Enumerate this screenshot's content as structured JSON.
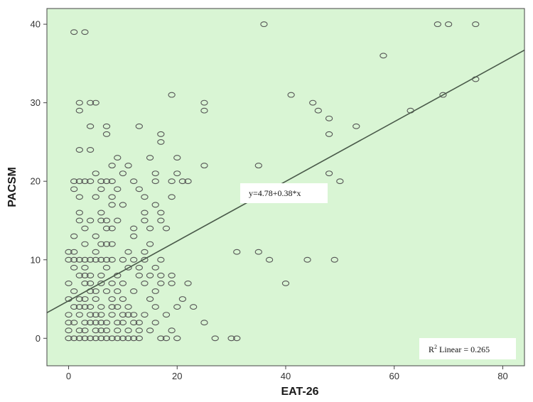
{
  "chart_data": {
    "type": "scatter",
    "xlabel": "EAT-26",
    "ylabel": "PACSM",
    "xlim": [
      -4,
      84
    ],
    "ylim": [
      -3.5,
      42
    ],
    "xticks": [
      "0",
      "20",
      "40",
      "60",
      "80"
    ],
    "yticks": [
      "0",
      "10",
      "20",
      "30",
      "40"
    ],
    "grid": false,
    "background_color": "#d9f5d4",
    "point_color": "#555555",
    "line_color": "#4a5a4a",
    "fit_line": {
      "intercept": 4.78,
      "slope": 0.38
    },
    "equation_label": "y=4.78+0.38*x",
    "r2_label": {
      "prefix": "R",
      "superscript": "2",
      "text": " Linear = 0.265"
    },
    "points": [
      [
        1,
        39
      ],
      [
        3,
        39
      ],
      [
        36,
        40
      ],
      [
        68,
        40
      ],
      [
        70,
        40
      ],
      [
        75,
        40
      ],
      [
        58,
        36
      ],
      [
        75,
        33
      ],
      [
        19,
        31
      ],
      [
        41,
        31
      ],
      [
        69,
        31
      ],
      [
        2,
        30
      ],
      [
        4,
        30
      ],
      [
        5,
        30
      ],
      [
        25,
        30
      ],
      [
        45,
        30
      ],
      [
        2,
        29
      ],
      [
        25,
        29
      ],
      [
        46,
        29
      ],
      [
        63,
        29
      ],
      [
        48,
        28
      ],
      [
        4,
        27
      ],
      [
        7,
        27
      ],
      [
        13,
        27
      ],
      [
        53,
        27
      ],
      [
        7,
        26
      ],
      [
        17,
        26
      ],
      [
        48,
        26
      ],
      [
        17,
        25
      ],
      [
        2,
        24
      ],
      [
        4,
        24
      ],
      [
        9,
        23
      ],
      [
        15,
        23
      ],
      [
        20,
        23
      ],
      [
        8,
        22
      ],
      [
        11,
        22
      ],
      [
        25,
        22
      ],
      [
        35,
        22
      ],
      [
        5,
        21
      ],
      [
        10,
        21
      ],
      [
        16,
        21
      ],
      [
        20,
        21
      ],
      [
        48,
        21
      ],
      [
        1,
        20
      ],
      [
        2,
        20
      ],
      [
        3,
        20
      ],
      [
        4,
        20
      ],
      [
        6,
        20
      ],
      [
        7,
        20
      ],
      [
        8,
        20
      ],
      [
        12,
        20
      ],
      [
        16,
        20
      ],
      [
        19,
        20
      ],
      [
        21,
        20
      ],
      [
        22,
        20
      ],
      [
        50,
        20
      ],
      [
        1,
        19
      ],
      [
        6,
        19
      ],
      [
        9,
        19
      ],
      [
        13,
        19
      ],
      [
        2,
        18
      ],
      [
        5,
        18
      ],
      [
        8,
        18
      ],
      [
        14,
        18
      ],
      [
        19,
        18
      ],
      [
        8,
        17
      ],
      [
        10,
        17
      ],
      [
        16,
        17
      ],
      [
        2,
        16
      ],
      [
        6,
        16
      ],
      [
        14,
        16
      ],
      [
        17,
        16
      ],
      [
        2,
        15
      ],
      [
        4,
        15
      ],
      [
        6,
        15
      ],
      [
        7,
        15
      ],
      [
        9,
        15
      ],
      [
        14,
        15
      ],
      [
        17,
        15
      ],
      [
        3,
        14
      ],
      [
        7,
        14
      ],
      [
        8,
        14
      ],
      [
        12,
        14
      ],
      [
        15,
        14
      ],
      [
        18,
        14
      ],
      [
        1,
        13
      ],
      [
        5,
        13
      ],
      [
        12,
        13
      ],
      [
        3,
        12
      ],
      [
        6,
        12
      ],
      [
        7,
        12
      ],
      [
        8,
        12
      ],
      [
        15,
        12
      ],
      [
        0,
        11
      ],
      [
        1,
        11
      ],
      [
        5,
        11
      ],
      [
        11,
        11
      ],
      [
        14,
        11
      ],
      [
        31,
        11
      ],
      [
        35,
        11
      ],
      [
        0,
        10
      ],
      [
        1,
        10
      ],
      [
        2,
        10
      ],
      [
        3,
        10
      ],
      [
        4,
        10
      ],
      [
        5,
        10
      ],
      [
        6,
        10
      ],
      [
        7,
        10
      ],
      [
        8,
        10
      ],
      [
        10,
        10
      ],
      [
        12,
        10
      ],
      [
        14,
        10
      ],
      [
        17,
        10
      ],
      [
        37,
        10
      ],
      [
        44,
        10
      ],
      [
        49,
        10
      ],
      [
        1,
        9
      ],
      [
        3,
        9
      ],
      [
        7,
        9
      ],
      [
        11,
        9
      ],
      [
        13,
        9
      ],
      [
        16,
        9
      ],
      [
        2,
        8
      ],
      [
        3,
        8
      ],
      [
        4,
        8
      ],
      [
        6,
        8
      ],
      [
        9,
        8
      ],
      [
        13,
        8
      ],
      [
        15,
        8
      ],
      [
        17,
        8
      ],
      [
        19,
        8
      ],
      [
        0,
        7
      ],
      [
        3,
        7
      ],
      [
        4,
        7
      ],
      [
        6,
        7
      ],
      [
        8,
        7
      ],
      [
        10,
        7
      ],
      [
        14,
        7
      ],
      [
        17,
        7
      ],
      [
        19,
        7
      ],
      [
        22,
        7
      ],
      [
        40,
        7
      ],
      [
        1,
        6
      ],
      [
        4,
        6
      ],
      [
        5,
        6
      ],
      [
        7,
        6
      ],
      [
        9,
        6
      ],
      [
        12,
        6
      ],
      [
        16,
        6
      ],
      [
        0,
        5
      ],
      [
        2,
        5
      ],
      [
        3,
        5
      ],
      [
        5,
        5
      ],
      [
        8,
        5
      ],
      [
        10,
        5
      ],
      [
        15,
        5
      ],
      [
        21,
        5
      ],
      [
        1,
        4
      ],
      [
        2,
        4
      ],
      [
        3,
        4
      ],
      [
        4,
        4
      ],
      [
        6,
        4
      ],
      [
        8,
        4
      ],
      [
        9,
        4
      ],
      [
        11,
        4
      ],
      [
        16,
        4
      ],
      [
        20,
        4
      ],
      [
        23,
        4
      ],
      [
        0,
        3
      ],
      [
        2,
        3
      ],
      [
        4,
        3
      ],
      [
        5,
        3
      ],
      [
        6,
        3
      ],
      [
        8,
        3
      ],
      [
        10,
        3
      ],
      [
        11,
        3
      ],
      [
        12,
        3
      ],
      [
        14,
        3
      ],
      [
        18,
        3
      ],
      [
        0,
        2
      ],
      [
        1,
        2
      ],
      [
        3,
        2
      ],
      [
        4,
        2
      ],
      [
        5,
        2
      ],
      [
        6,
        2
      ],
      [
        7,
        2
      ],
      [
        9,
        2
      ],
      [
        10,
        2
      ],
      [
        12,
        2
      ],
      [
        13,
        2
      ],
      [
        16,
        2
      ],
      [
        25,
        2
      ],
      [
        0,
        1
      ],
      [
        2,
        1
      ],
      [
        3,
        1
      ],
      [
        5,
        1
      ],
      [
        6,
        1
      ],
      [
        7,
        1
      ],
      [
        9,
        1
      ],
      [
        11,
        1
      ],
      [
        13,
        1
      ],
      [
        15,
        1
      ],
      [
        19,
        1
      ],
      [
        0,
        0
      ],
      [
        1,
        0
      ],
      [
        2,
        0
      ],
      [
        3,
        0
      ],
      [
        4,
        0
      ],
      [
        5,
        0
      ],
      [
        6,
        0
      ],
      [
        7,
        0
      ],
      [
        8,
        0
      ],
      [
        9,
        0
      ],
      [
        10,
        0
      ],
      [
        11,
        0
      ],
      [
        12,
        0
      ],
      [
        13,
        0
      ],
      [
        17,
        0
      ],
      [
        18,
        0
      ],
      [
        20,
        0
      ],
      [
        27,
        0
      ],
      [
        30,
        0
      ],
      [
        31,
        0
      ]
    ]
  }
}
